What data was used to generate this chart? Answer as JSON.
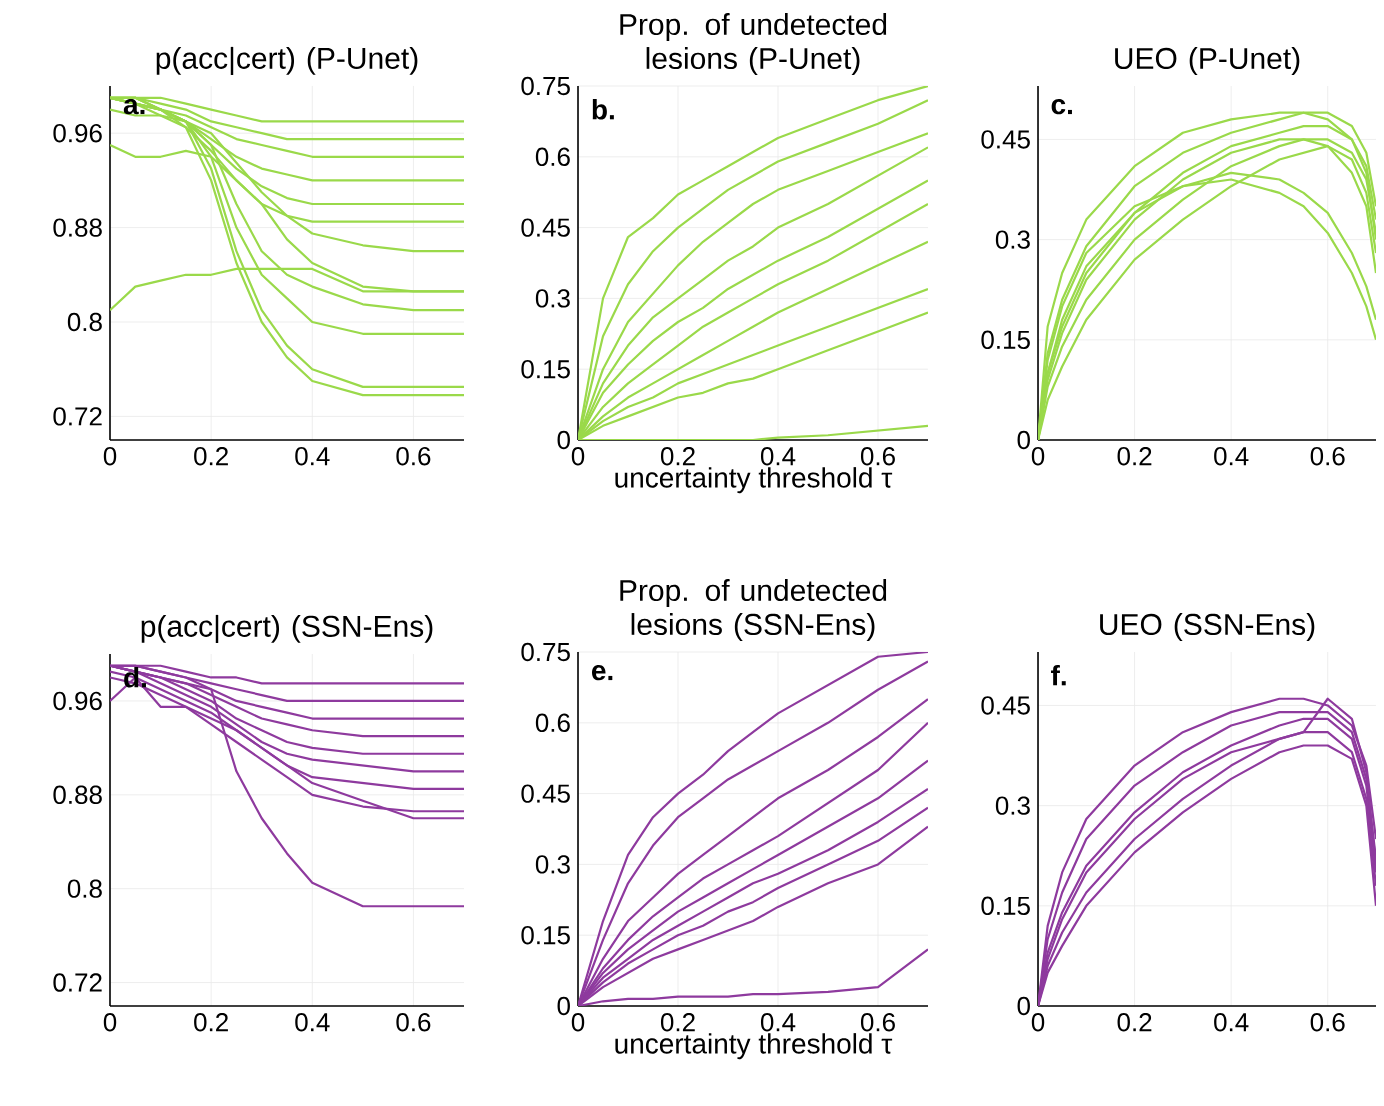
{
  "chart_data": [
    {
      "type": "line",
      "title": "p(acc|cert) (P-Unet)",
      "annotations": [
        "a."
      ],
      "xlim": [
        0,
        0.7
      ],
      "ylim": [
        0.7,
        1.0
      ],
      "xticks": [
        0,
        0.2,
        0.4,
        0.6
      ],
      "yticks": [
        0.72,
        0.8,
        0.88,
        0.96
      ],
      "grid": true,
      "x": [
        0,
        0.05,
        0.1,
        0.15,
        0.2,
        0.25,
        0.3,
        0.35,
        0.4,
        0.5,
        0.6,
        0.7
      ],
      "series": [
        {
          "color": "#9ad94a",
          "values": [
            0.99,
            0.99,
            0.99,
            0.985,
            0.98,
            0.975,
            0.97,
            0.97,
            0.97,
            0.97,
            0.97,
            0.97
          ]
        },
        {
          "color": "#9ad94a",
          "values": [
            0.99,
            0.99,
            0.985,
            0.98,
            0.97,
            0.965,
            0.96,
            0.955,
            0.955,
            0.955,
            0.955,
            0.955
          ]
        },
        {
          "color": "#9ad94a",
          "values": [
            0.99,
            0.985,
            0.98,
            0.975,
            0.965,
            0.955,
            0.95,
            0.945,
            0.94,
            0.94,
            0.94,
            0.94
          ]
        },
        {
          "color": "#9ad94a",
          "values": [
            0.99,
            0.985,
            0.98,
            0.97,
            0.955,
            0.94,
            0.93,
            0.925,
            0.92,
            0.92,
            0.92,
            0.92
          ]
        },
        {
          "color": "#9ad94a",
          "values": [
            0.99,
            0.99,
            0.98,
            0.97,
            0.95,
            0.93,
            0.915,
            0.905,
            0.9,
            0.9,
            0.9,
            0.9
          ]
        },
        {
          "color": "#9ad94a",
          "values": [
            0.99,
            0.985,
            0.975,
            0.965,
            0.945,
            0.92,
            0.9,
            0.89,
            0.885,
            0.885,
            0.885,
            0.885
          ]
        },
        {
          "color": "#9ad94a",
          "values": [
            0.98,
            0.975,
            0.975,
            0.97,
            0.96,
            0.935,
            0.91,
            0.89,
            0.875,
            0.865,
            0.86,
            0.86
          ]
        },
        {
          "color": "#9ad94a",
          "values": [
            0.95,
            0.94,
            0.94,
            0.945,
            0.94,
            0.92,
            0.9,
            0.87,
            0.85,
            0.83,
            0.826,
            0.826
          ]
        },
        {
          "color": "#9ad94a",
          "values": [
            0.81,
            0.83,
            0.835,
            0.84,
            0.84,
            0.845,
            0.845,
            0.845,
            0.845,
            0.826,
            0.826,
            0.826
          ]
        },
        {
          "color": "#9ad94a",
          "values": [
            0.99,
            0.985,
            0.98,
            0.97,
            0.95,
            0.9,
            0.86,
            0.84,
            0.83,
            0.815,
            0.81,
            0.81
          ]
        },
        {
          "color": "#9ad94a",
          "values": [
            0.99,
            0.99,
            0.98,
            0.97,
            0.94,
            0.88,
            0.84,
            0.82,
            0.8,
            0.79,
            0.79,
            0.79
          ]
        },
        {
          "color": "#9ad94a",
          "values": [
            0.99,
            0.99,
            0.98,
            0.97,
            0.93,
            0.86,
            0.81,
            0.78,
            0.76,
            0.745,
            0.745,
            0.745
          ]
        },
        {
          "color": "#9ad94a",
          "values": [
            0.99,
            0.985,
            0.98,
            0.965,
            0.92,
            0.85,
            0.8,
            0.77,
            0.75,
            0.738,
            0.738,
            0.738
          ]
        }
      ]
    },
    {
      "type": "line",
      "title": "Prop. of undetected lesions (P-Unet)",
      "xlabel": "uncertainty threshold τ",
      "annotations": [
        "b."
      ],
      "xlim": [
        0,
        0.7
      ],
      "ylim": [
        0,
        0.75
      ],
      "xticks": [
        0,
        0.2,
        0.4,
        0.6
      ],
      "yticks": [
        0,
        0.15,
        0.3,
        0.45,
        0.6,
        0.75
      ],
      "grid": true,
      "x": [
        0,
        0.05,
        0.1,
        0.15,
        0.2,
        0.25,
        0.3,
        0.35,
        0.4,
        0.5,
        0.6,
        0.7
      ],
      "series": [
        {
          "color": "#9ad94a",
          "values": [
            0,
            0.3,
            0.43,
            0.47,
            0.52,
            0.55,
            0.58,
            0.61,
            0.64,
            0.68,
            0.72,
            0.75
          ]
        },
        {
          "color": "#9ad94a",
          "values": [
            0,
            0.22,
            0.33,
            0.4,
            0.45,
            0.49,
            0.53,
            0.56,
            0.59,
            0.63,
            0.67,
            0.72
          ]
        },
        {
          "color": "#9ad94a",
          "values": [
            0,
            0.15,
            0.25,
            0.31,
            0.37,
            0.42,
            0.46,
            0.5,
            0.53,
            0.57,
            0.61,
            0.65
          ]
        },
        {
          "color": "#9ad94a",
          "values": [
            0,
            0.12,
            0.2,
            0.26,
            0.3,
            0.34,
            0.38,
            0.41,
            0.45,
            0.5,
            0.56,
            0.62
          ]
        },
        {
          "color": "#9ad94a",
          "values": [
            0,
            0.1,
            0.16,
            0.21,
            0.25,
            0.28,
            0.32,
            0.35,
            0.38,
            0.43,
            0.49,
            0.55
          ]
        },
        {
          "color": "#9ad94a",
          "values": [
            0,
            0.07,
            0.12,
            0.16,
            0.2,
            0.24,
            0.27,
            0.3,
            0.33,
            0.38,
            0.44,
            0.5
          ]
        },
        {
          "color": "#9ad94a",
          "values": [
            0,
            0.05,
            0.09,
            0.12,
            0.15,
            0.18,
            0.21,
            0.24,
            0.27,
            0.32,
            0.37,
            0.42
          ]
        },
        {
          "color": "#9ad94a",
          "values": [
            0,
            0.04,
            0.07,
            0.09,
            0.12,
            0.14,
            0.16,
            0.18,
            0.2,
            0.24,
            0.28,
            0.32
          ]
        },
        {
          "color": "#9ad94a",
          "values": [
            0,
            0.03,
            0.05,
            0.07,
            0.09,
            0.1,
            0.12,
            0.13,
            0.15,
            0.19,
            0.23,
            0.27
          ]
        },
        {
          "color": "#9ad94a",
          "values": [
            0,
            0,
            0,
            0,
            0,
            0,
            0,
            0,
            0.005,
            0.01,
            0.02,
            0.03
          ]
        }
      ]
    },
    {
      "type": "line",
      "title": "UEO (P-Unet)",
      "annotations": [
        "c."
      ],
      "xlim": [
        0,
        0.7
      ],
      "ylim": [
        0,
        0.53
      ],
      "xticks": [
        0,
        0.2,
        0.4,
        0.6
      ],
      "yticks": [
        0,
        0.15,
        0.3,
        0.45
      ],
      "grid": true,
      "x": [
        0,
        0.02,
        0.05,
        0.1,
        0.2,
        0.3,
        0.4,
        0.5,
        0.55,
        0.6,
        0.65,
        0.68,
        0.7
      ],
      "series": [
        {
          "color": "#9ad94a",
          "values": [
            0,
            0.17,
            0.25,
            0.33,
            0.41,
            0.46,
            0.48,
            0.49,
            0.49,
            0.48,
            0.45,
            0.4,
            0.3
          ]
        },
        {
          "color": "#9ad94a",
          "values": [
            0,
            0.13,
            0.21,
            0.29,
            0.38,
            0.43,
            0.46,
            0.48,
            0.49,
            0.49,
            0.47,
            0.43,
            0.35
          ]
        },
        {
          "color": "#9ad94a",
          "values": [
            0,
            0.1,
            0.17,
            0.25,
            0.34,
            0.4,
            0.44,
            0.46,
            0.47,
            0.47,
            0.45,
            0.41,
            0.33
          ]
        },
        {
          "color": "#9ad94a",
          "values": [
            0,
            0.08,
            0.14,
            0.21,
            0.3,
            0.36,
            0.41,
            0.44,
            0.45,
            0.45,
            0.43,
            0.39,
            0.31
          ]
        },
        {
          "color": "#9ad94a",
          "values": [
            0,
            0.06,
            0.11,
            0.18,
            0.27,
            0.33,
            0.38,
            0.42,
            0.43,
            0.44,
            0.42,
            0.37,
            0.28
          ]
        },
        {
          "color": "#9ad94a",
          "values": [
            0,
            0.12,
            0.2,
            0.28,
            0.35,
            0.38,
            0.39,
            0.37,
            0.35,
            0.31,
            0.25,
            0.2,
            0.15
          ]
        },
        {
          "color": "#9ad94a",
          "values": [
            0,
            0.1,
            0.18,
            0.26,
            0.34,
            0.38,
            0.4,
            0.39,
            0.37,
            0.34,
            0.28,
            0.23,
            0.18
          ]
        },
        {
          "color": "#9ad94a",
          "values": [
            0,
            0.09,
            0.16,
            0.24,
            0.33,
            0.39,
            0.43,
            0.45,
            0.45,
            0.44,
            0.4,
            0.35,
            0.25
          ]
        }
      ]
    },
    {
      "type": "line",
      "title": "p(acc|cert) (SSN-Ens)",
      "annotations": [
        "d."
      ],
      "xlim": [
        0,
        0.7
      ],
      "ylim": [
        0.7,
        1.0
      ],
      "xticks": [
        0,
        0.2,
        0.4,
        0.6
      ],
      "yticks": [
        0.72,
        0.8,
        0.88,
        0.96
      ],
      "grid": true,
      "x": [
        0,
        0.05,
        0.1,
        0.15,
        0.2,
        0.25,
        0.3,
        0.35,
        0.4,
        0.5,
        0.6,
        0.7
      ],
      "series": [
        {
          "color": "#8e3a9e",
          "values": [
            0.99,
            0.99,
            0.99,
            0.985,
            0.98,
            0.98,
            0.975,
            0.975,
            0.975,
            0.975,
            0.975,
            0.975
          ]
        },
        {
          "color": "#8e3a9e",
          "values": [
            0.99,
            0.99,
            0.985,
            0.98,
            0.975,
            0.97,
            0.965,
            0.96,
            0.96,
            0.96,
            0.96,
            0.96
          ]
        },
        {
          "color": "#8e3a9e",
          "values": [
            0.99,
            0.99,
            0.985,
            0.98,
            0.97,
            0.96,
            0.955,
            0.95,
            0.945,
            0.945,
            0.945,
            0.945
          ]
        },
        {
          "color": "#8e3a9e",
          "values": [
            0.99,
            0.985,
            0.98,
            0.975,
            0.965,
            0.955,
            0.945,
            0.94,
            0.935,
            0.93,
            0.93,
            0.93
          ]
        },
        {
          "color": "#8e3a9e",
          "values": [
            0.99,
            0.985,
            0.98,
            0.97,
            0.96,
            0.945,
            0.935,
            0.925,
            0.92,
            0.915,
            0.915,
            0.915
          ]
        },
        {
          "color": "#8e3a9e",
          "values": [
            0.99,
            0.985,
            0.975,
            0.965,
            0.955,
            0.94,
            0.925,
            0.915,
            0.91,
            0.905,
            0.9,
            0.9
          ]
        },
        {
          "color": "#8e3a9e",
          "values": [
            0.985,
            0.98,
            0.97,
            0.96,
            0.95,
            0.935,
            0.92,
            0.905,
            0.895,
            0.89,
            0.885,
            0.885
          ]
        },
        {
          "color": "#8e3a9e",
          "values": [
            0.98,
            0.975,
            0.965,
            0.955,
            0.94,
            0.925,
            0.91,
            0.895,
            0.88,
            0.87,
            0.866,
            0.866
          ]
        },
        {
          "color": "#8e3a9e",
          "values": [
            0.96,
            0.98,
            0.955,
            0.955,
            0.945,
            0.935,
            0.92,
            0.905,
            0.89,
            0.875,
            0.86,
            0.86
          ]
        },
        {
          "color": "#8e3a9e",
          "values": [
            0.99,
            0.985,
            0.98,
            0.975,
            0.97,
            0.9,
            0.86,
            0.83,
            0.805,
            0.785,
            0.785,
            0.785
          ]
        }
      ]
    },
    {
      "type": "line",
      "title": "Prop. of undetected lesions (SSN-Ens)",
      "xlabel": "uncertainty threshold τ",
      "annotations": [
        "e."
      ],
      "xlim": [
        0,
        0.7
      ],
      "ylim": [
        0,
        0.75
      ],
      "xticks": [
        0,
        0.2,
        0.4,
        0.6
      ],
      "yticks": [
        0,
        0.15,
        0.3,
        0.45,
        0.6,
        0.75
      ],
      "grid": true,
      "x": [
        0,
        0.05,
        0.1,
        0.15,
        0.2,
        0.25,
        0.3,
        0.35,
        0.4,
        0.5,
        0.6,
        0.7
      ],
      "series": [
        {
          "color": "#8e3a9e",
          "values": [
            0,
            0.18,
            0.32,
            0.4,
            0.45,
            0.49,
            0.54,
            0.58,
            0.62,
            0.68,
            0.74,
            0.75
          ]
        },
        {
          "color": "#8e3a9e",
          "values": [
            0,
            0.14,
            0.26,
            0.34,
            0.4,
            0.44,
            0.48,
            0.51,
            0.54,
            0.6,
            0.67,
            0.73
          ]
        },
        {
          "color": "#8e3a9e",
          "values": [
            0,
            0.1,
            0.18,
            0.23,
            0.28,
            0.32,
            0.36,
            0.4,
            0.44,
            0.5,
            0.57,
            0.65
          ]
        },
        {
          "color": "#8e3a9e",
          "values": [
            0,
            0.08,
            0.14,
            0.19,
            0.23,
            0.27,
            0.3,
            0.33,
            0.36,
            0.43,
            0.5,
            0.6
          ]
        },
        {
          "color": "#8e3a9e",
          "values": [
            0,
            0.07,
            0.12,
            0.16,
            0.2,
            0.23,
            0.26,
            0.29,
            0.32,
            0.38,
            0.44,
            0.52
          ]
        },
        {
          "color": "#8e3a9e",
          "values": [
            0,
            0.06,
            0.1,
            0.14,
            0.17,
            0.2,
            0.23,
            0.26,
            0.28,
            0.33,
            0.39,
            0.46
          ]
        },
        {
          "color": "#8e3a9e",
          "values": [
            0,
            0.05,
            0.09,
            0.12,
            0.15,
            0.17,
            0.2,
            0.22,
            0.25,
            0.3,
            0.35,
            0.42
          ]
        },
        {
          "color": "#8e3a9e",
          "values": [
            0,
            0.04,
            0.07,
            0.1,
            0.12,
            0.14,
            0.16,
            0.18,
            0.21,
            0.26,
            0.3,
            0.38
          ]
        },
        {
          "color": "#8e3a9e",
          "values": [
            0,
            0.01,
            0.015,
            0.015,
            0.02,
            0.02,
            0.02,
            0.025,
            0.025,
            0.03,
            0.04,
            0.12
          ]
        }
      ]
    },
    {
      "type": "line",
      "title": "UEO (SSN-Ens)",
      "annotations": [
        "f."
      ],
      "xlim": [
        0,
        0.7
      ],
      "ylim": [
        0,
        0.53
      ],
      "xticks": [
        0,
        0.2,
        0.4,
        0.6
      ],
      "yticks": [
        0,
        0.15,
        0.3,
        0.45
      ],
      "grid": true,
      "x": [
        0,
        0.02,
        0.05,
        0.1,
        0.2,
        0.3,
        0.4,
        0.5,
        0.55,
        0.6,
        0.65,
        0.68,
        0.7
      ],
      "series": [
        {
          "color": "#8e3a9e",
          "values": [
            0,
            0.12,
            0.2,
            0.28,
            0.36,
            0.41,
            0.44,
            0.46,
            0.46,
            0.45,
            0.42,
            0.36,
            0.25
          ]
        },
        {
          "color": "#8e3a9e",
          "values": [
            0,
            0.1,
            0.17,
            0.25,
            0.33,
            0.38,
            0.42,
            0.44,
            0.44,
            0.44,
            0.41,
            0.34,
            0.22
          ]
        },
        {
          "color": "#8e3a9e",
          "values": [
            0,
            0.08,
            0.14,
            0.21,
            0.29,
            0.35,
            0.39,
            0.42,
            0.43,
            0.43,
            0.4,
            0.33,
            0.2
          ]
        },
        {
          "color": "#8e3a9e",
          "values": [
            0,
            0.06,
            0.11,
            0.17,
            0.25,
            0.31,
            0.36,
            0.4,
            0.41,
            0.41,
            0.38,
            0.31,
            0.18
          ]
        },
        {
          "color": "#8e3a9e",
          "values": [
            0,
            0.05,
            0.09,
            0.15,
            0.23,
            0.29,
            0.34,
            0.38,
            0.39,
            0.39,
            0.37,
            0.3,
            0.15
          ]
        },
        {
          "color": "#8e3a9e",
          "values": [
            0,
            0.07,
            0.13,
            0.2,
            0.28,
            0.34,
            0.38,
            0.4,
            0.41,
            0.46,
            0.43,
            0.35,
            0.21
          ]
        }
      ]
    }
  ]
}
